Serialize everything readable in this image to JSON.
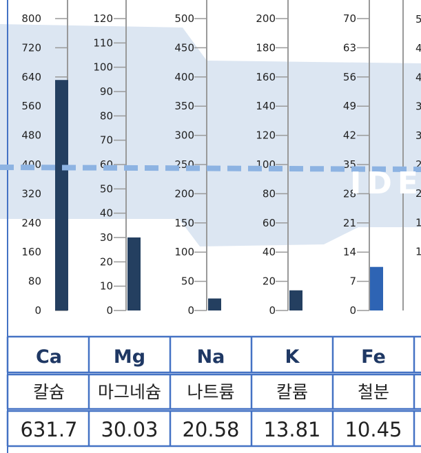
{
  "chart_data": {
    "type": "bar",
    "columns": [
      {
        "symbol": "Ca",
        "name": "칼슘",
        "value": 631.7,
        "display": "631.7",
        "ticks": [
          0,
          80,
          160,
          240,
          320,
          400,
          480,
          560,
          640,
          720,
          800
        ],
        "ymax": 800,
        "color": "#243f60"
      },
      {
        "symbol": "Mg",
        "name": "마그네슘",
        "value": 30.03,
        "display": "30.03",
        "ticks": [
          0,
          10,
          20,
          30,
          40,
          50,
          60,
          70,
          80,
          90,
          100,
          110,
          120
        ],
        "ymax": 120,
        "color": "#243f60"
      },
      {
        "symbol": "Na",
        "name": "나트륨",
        "value": 20.58,
        "display": "20.58",
        "ticks": [
          0,
          50,
          100,
          150,
          200,
          250,
          300,
          350,
          400,
          450,
          500
        ],
        "ymax": 500,
        "color": "#243f60"
      },
      {
        "symbol": "K",
        "name": "칼륨",
        "value": 13.81,
        "display": "13.81",
        "ticks": [
          0,
          20,
          40,
          60,
          80,
          100,
          120,
          140,
          160,
          180,
          200
        ],
        "ymax": 200,
        "color": "#243f60"
      },
      {
        "symbol": "Fe",
        "name": "철분",
        "value": 10.45,
        "display": "10.45",
        "ticks": [
          0,
          7,
          14,
          21,
          28,
          35,
          42,
          49,
          56,
          63,
          70
        ],
        "ymax": 70,
        "color": "#2e64b4"
      }
    ],
    "partial_ticks": [
      "5",
      "4",
      "4",
      "3",
      "3",
      "2",
      "2",
      "1",
      "1"
    ],
    "reference_line": {
      "Ca": 400,
      "Mg": 58,
      "Na": 240,
      "K": 96,
      "Fe": 34
    },
    "watermark": "IDE",
    "grid": false
  },
  "colors": {
    "band": "#dce6f2",
    "refline": "#8db3e2",
    "table_border": "#4472c4",
    "header_text": "#1f3864",
    "axis": "#999999"
  }
}
